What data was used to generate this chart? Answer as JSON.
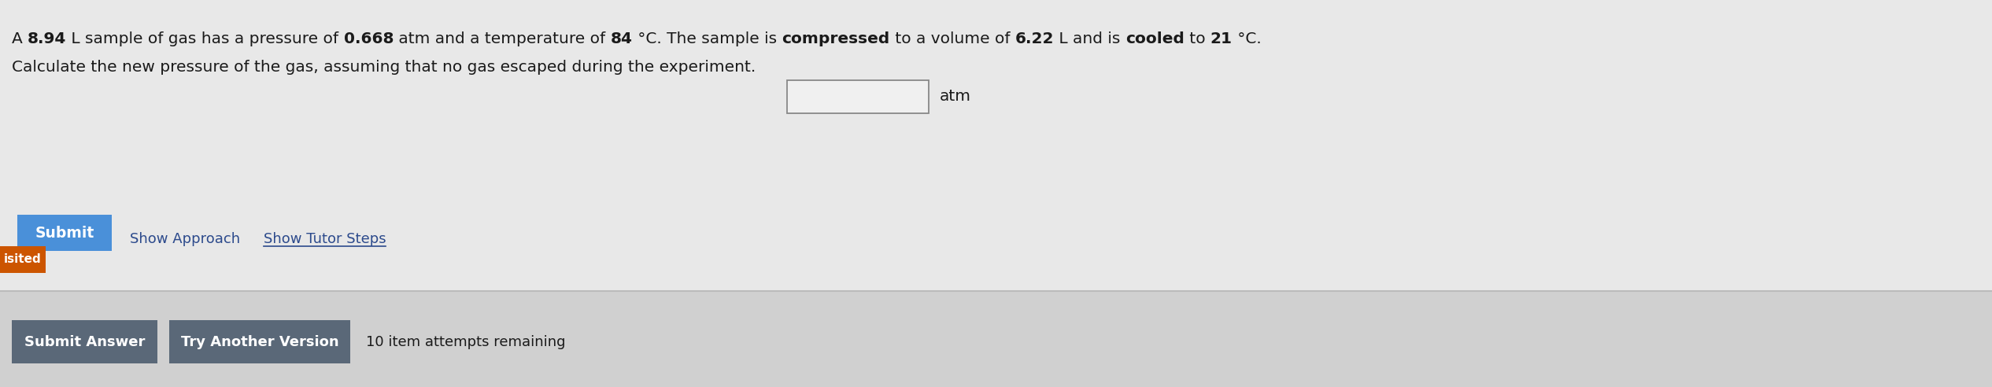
{
  "bg_color": "#e8e8e8",
  "bg_color_bottom": "#d0d0d0",
  "line2": "Calculate the new pressure of the gas, assuming that no gas escaped during the experiment.",
  "unit_label": "atm",
  "show_approach": "Show Approach",
  "show_tutor": "Show Tutor Steps",
  "submit_label": "Submit",
  "submit_bg": "#4a90d9",
  "visited_label": "isited",
  "visited_bg": "#cc5500",
  "submit_answer_label": "Submit Answer",
  "try_another_label": "Try Another Version",
  "attempts_label": "10 item attempts remaining",
  "text_color": "#1a1a1a",
  "link_color": "#2c4a8c",
  "divider_color": "#bbbbbb",
  "input_border_color": "#888888",
  "input_bg": "#f0f0f0",
  "font_size_main": 14.5,
  "font_size_bottom": 13,
  "figwidth": 25.31,
  "figheight": 4.92,
  "segments_line1": [
    [
      "A ",
      false
    ],
    [
      "8.94",
      true
    ],
    [
      " L sample of gas has a pressure of ",
      false
    ],
    [
      "0.668",
      true
    ],
    [
      " atm and a temperature of ",
      false
    ],
    [
      "84",
      true
    ],
    [
      " °C. The sample is ",
      false
    ],
    [
      "compressed",
      true
    ],
    [
      " to a volume of ",
      false
    ],
    [
      "6.22",
      true
    ],
    [
      " L and is ",
      false
    ],
    [
      "cooled",
      true
    ],
    [
      " to ",
      false
    ],
    [
      "21",
      true
    ],
    [
      " °C.",
      false
    ]
  ]
}
